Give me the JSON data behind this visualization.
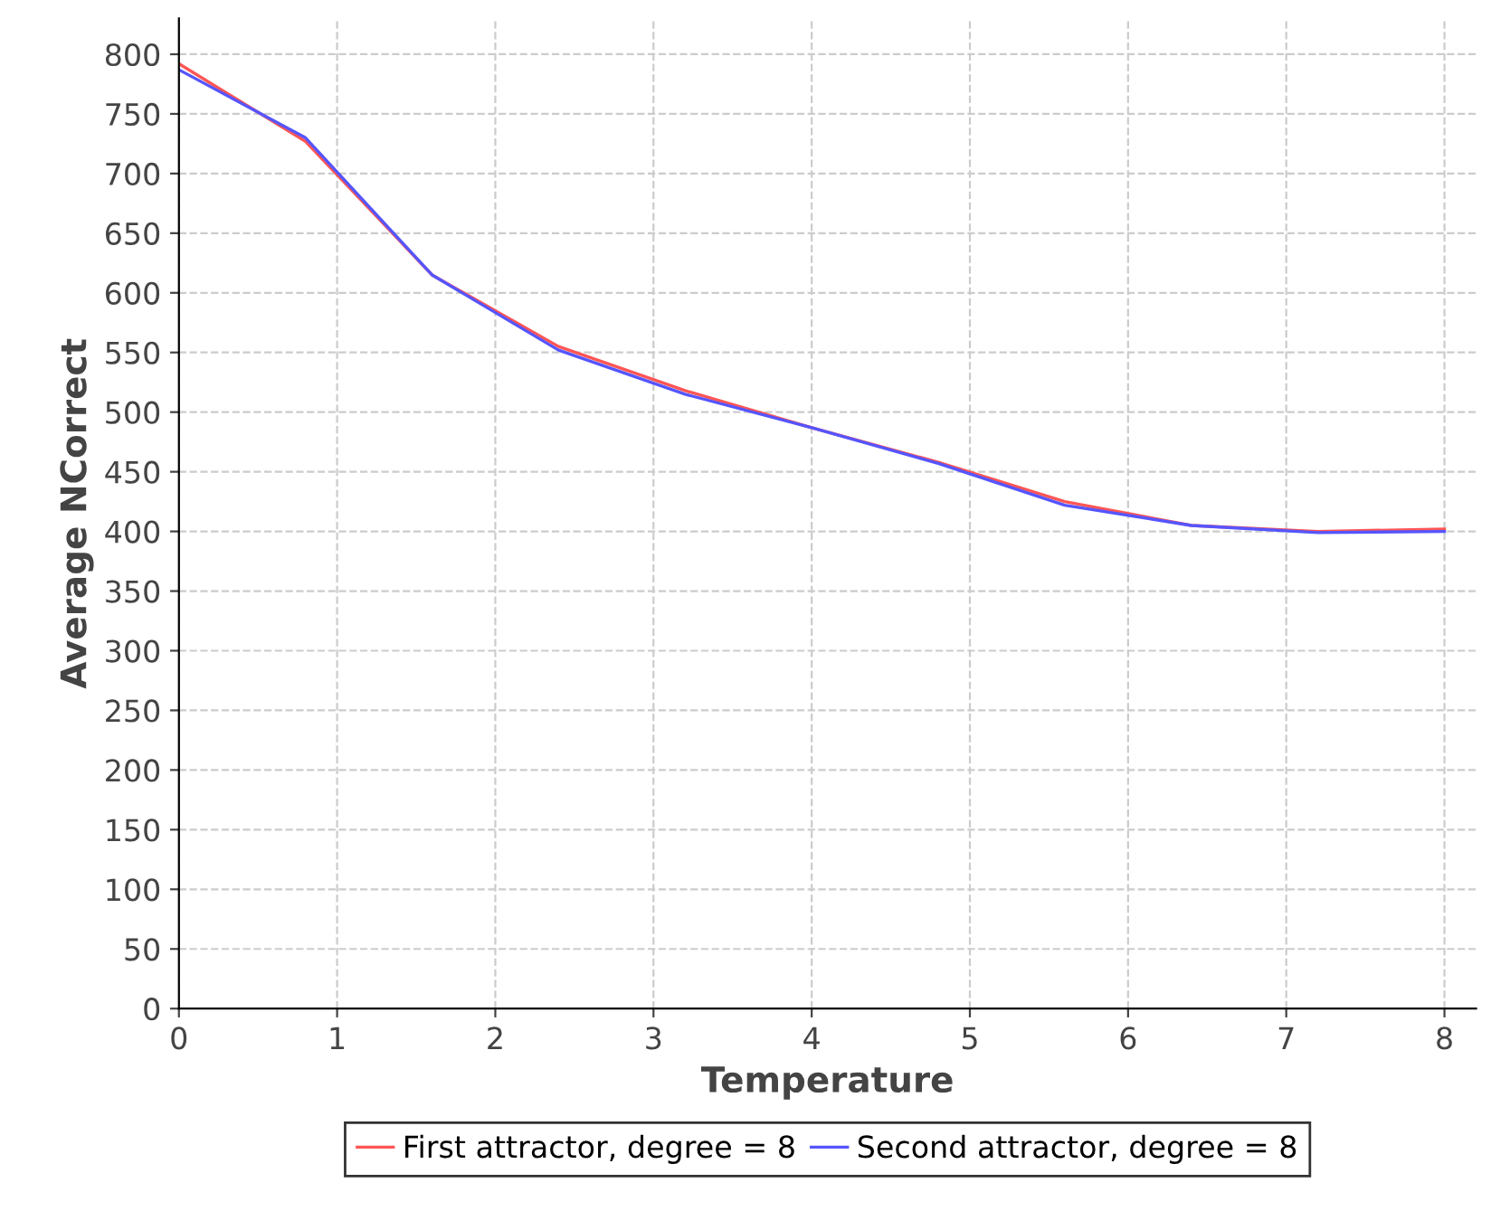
{
  "chart_data": {
    "type": "line",
    "xlabel": "Temperature",
    "ylabel": "Average NCorrect",
    "x": [
      0,
      0.8,
      1.6,
      2.4,
      3.2,
      4.0,
      4.8,
      5.6,
      6.4,
      7.2,
      8.0
    ],
    "series": [
      {
        "name": "First attractor, degree = 8",
        "color": "#ff5555",
        "values": [
          792,
          727,
          615,
          555,
          518,
          487,
          458,
          425,
          405,
          400,
          402
        ]
      },
      {
        "name": "Second attractor, degree = 8",
        "color": "#5555ff",
        "values": [
          787,
          730,
          615,
          552,
          515,
          487,
          457,
          422,
          405,
          399,
          400
        ]
      }
    ],
    "xlim": [
      0,
      8.2
    ],
    "ylim": [
      0,
      830
    ],
    "xticks": [
      0,
      1,
      2,
      3,
      4,
      5,
      6,
      7,
      8
    ],
    "yticks": [
      0,
      50,
      100,
      150,
      200,
      250,
      300,
      350,
      400,
      450,
      500,
      550,
      600,
      650,
      700,
      750,
      800
    ],
    "grid": true,
    "legend": "bottom",
    "marker": "none",
    "line_style": "solid"
  }
}
